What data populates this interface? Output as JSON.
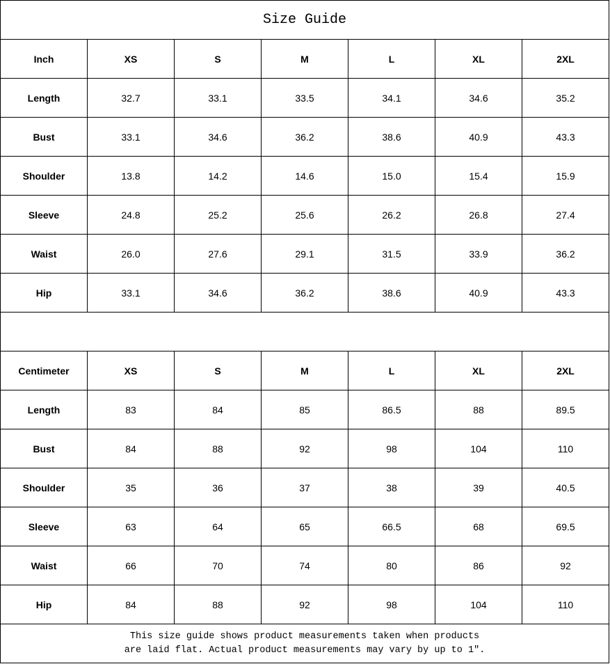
{
  "title": "Size Guide",
  "sizes": [
    "XS",
    "S",
    "M",
    "L",
    "XL",
    "2XL"
  ],
  "tables": [
    {
      "unit": "Inch",
      "rows": [
        {
          "label": "Length",
          "values": [
            "32.7",
            "33.1",
            "33.5",
            "34.1",
            "34.6",
            "35.2"
          ]
        },
        {
          "label": "Bust",
          "values": [
            "33.1",
            "34.6",
            "36.2",
            "38.6",
            "40.9",
            "43.3"
          ]
        },
        {
          "label": "Shoulder",
          "values": [
            "13.8",
            "14.2",
            "14.6",
            "15.0",
            "15.4",
            "15.9"
          ]
        },
        {
          "label": "Sleeve",
          "values": [
            "24.8",
            "25.2",
            "25.6",
            "26.2",
            "26.8",
            "27.4"
          ]
        },
        {
          "label": "Waist",
          "values": [
            "26.0",
            "27.6",
            "29.1",
            "31.5",
            "33.9",
            "36.2"
          ]
        },
        {
          "label": "Hip",
          "values": [
            "33.1",
            "34.6",
            "36.2",
            "38.6",
            "40.9",
            "43.3"
          ]
        }
      ]
    },
    {
      "unit": "Centimeter",
      "rows": [
        {
          "label": "Length",
          "values": [
            "83",
            "84",
            "85",
            "86.5",
            "88",
            "89.5"
          ]
        },
        {
          "label": "Bust",
          "values": [
            "84",
            "88",
            "92",
            "98",
            "104",
            "110"
          ]
        },
        {
          "label": "Shoulder",
          "values": [
            "35",
            "36",
            "37",
            "38",
            "39",
            "40.5"
          ]
        },
        {
          "label": "Sleeve",
          "values": [
            "63",
            "64",
            "65",
            "66.5",
            "68",
            "69.5"
          ]
        },
        {
          "label": "Waist",
          "values": [
            "66",
            "70",
            "74",
            "80",
            "86",
            "92"
          ]
        },
        {
          "label": "Hip",
          "values": [
            "84",
            "88",
            "92",
            "98",
            "104",
            "110"
          ]
        }
      ]
    }
  ],
  "note_line1": "This size guide shows product measurements taken when products",
  "note_line2": "are laid flat. Actual product measurements may vary by up to 1″."
}
